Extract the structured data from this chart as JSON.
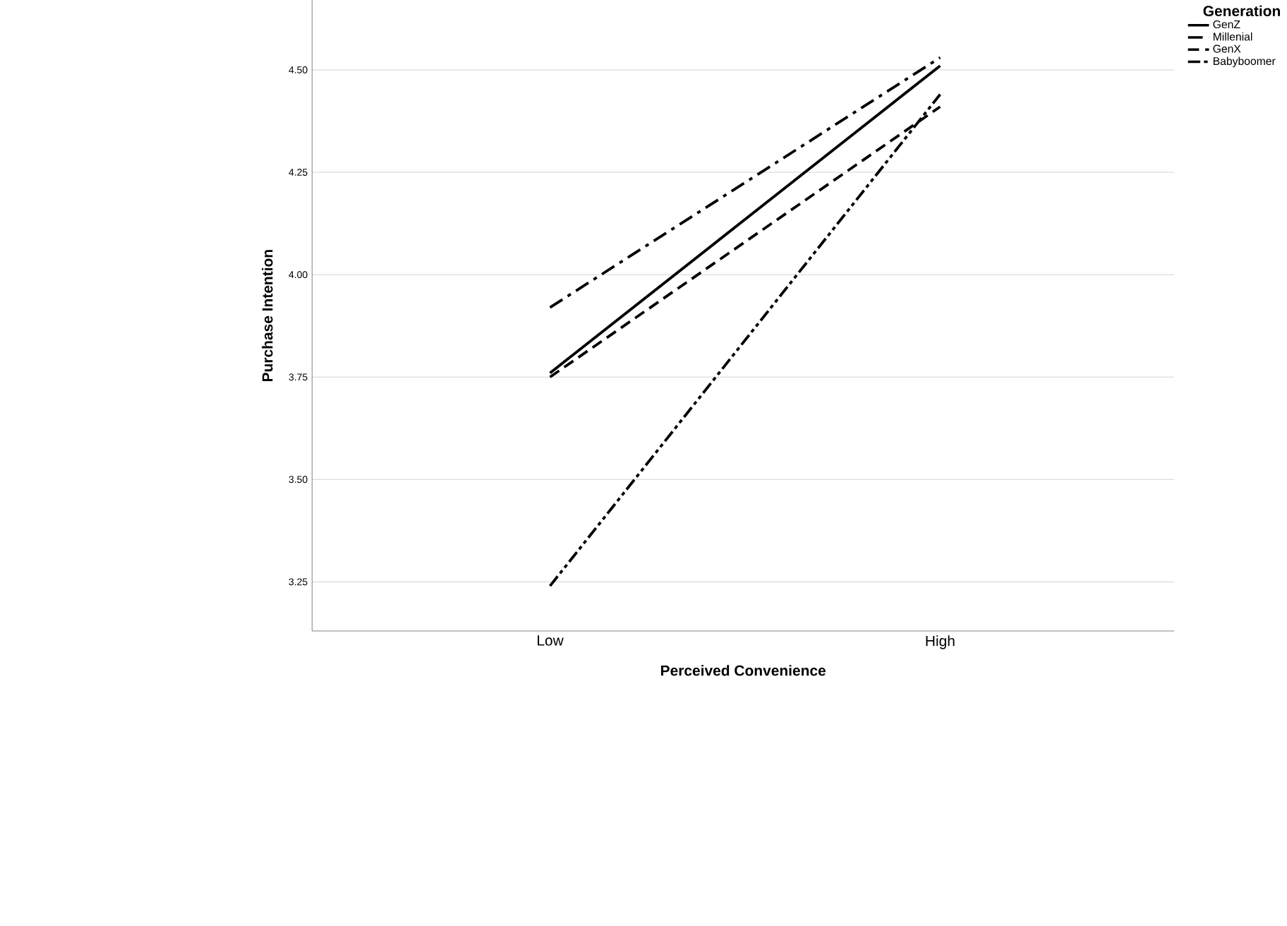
{
  "chart_data": {
    "type": "line",
    "xlabel": "Perceived Convenience",
    "ylabel": "Purchase Intention",
    "legend_title": "Generation",
    "categories": [
      "Low",
      "High"
    ],
    "series": [
      {
        "name": "GenZ",
        "color": "#000000",
        "line_style": "solid",
        "values": [
          3.76,
          4.51
        ]
      },
      {
        "name": "Millenial",
        "color": "#000000",
        "line_style": "dashdot",
        "values": [
          3.92,
          4.53
        ]
      },
      {
        "name": "GenX",
        "color": "#000000",
        "line_style": "dashed",
        "values": [
          3.75,
          4.41
        ]
      },
      {
        "name": "Babyboomer",
        "color": "#000000",
        "line_style": "dashdotdot",
        "values": [
          3.24,
          4.44
        ]
      }
    ],
    "ylim": [
      3.13,
      4.67
    ],
    "yticks": [
      {
        "value": 3.25,
        "label": "3.25"
      },
      {
        "value": 3.5,
        "label": "3.50"
      },
      {
        "value": 3.75,
        "label": "3.75"
      },
      {
        "value": 4.0,
        "label": "4.00"
      },
      {
        "value": 4.25,
        "label": "4.25"
      },
      {
        "value": 4.5,
        "label": "4.50"
      }
    ],
    "grid": "y",
    "legend": "top right",
    "marker": "none"
  }
}
